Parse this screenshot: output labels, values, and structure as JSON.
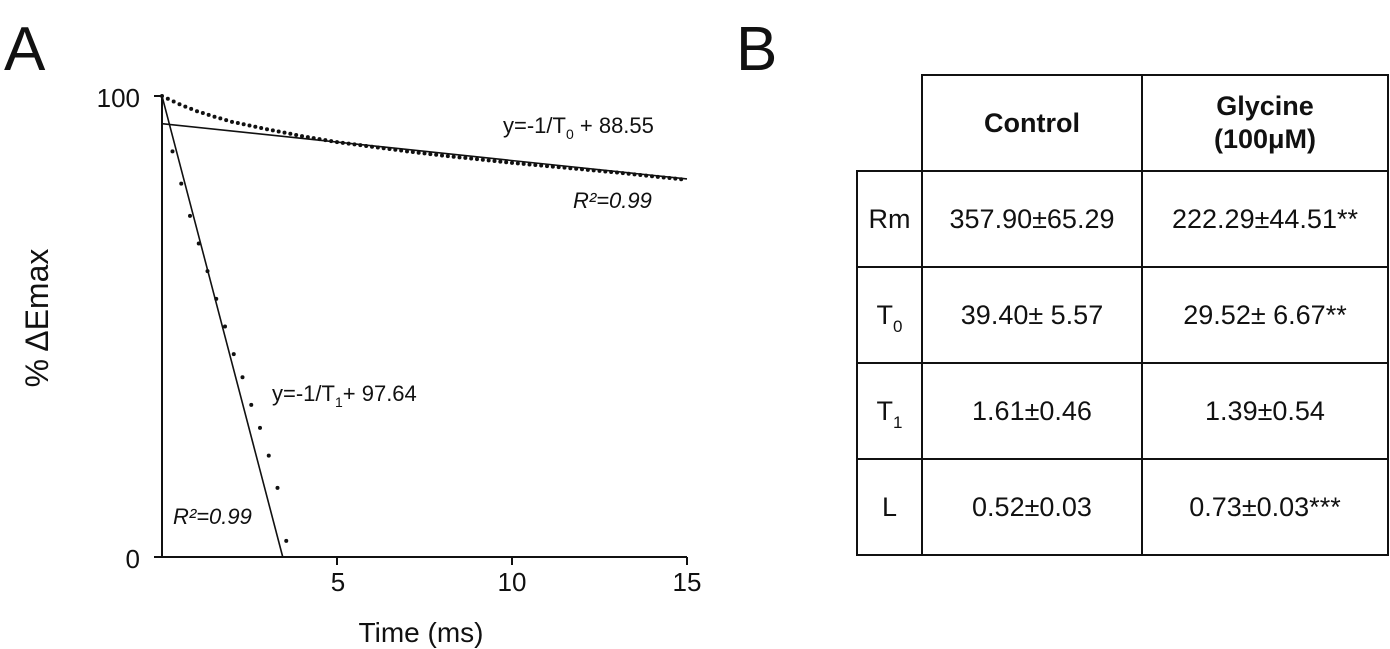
{
  "panels": {
    "a_label": "A",
    "b_label": "B"
  },
  "chart_data": {
    "type": "line",
    "xlabel": "Time (ms)",
    "ylabel": "% ΔEmax",
    "xlim": [
      0,
      15
    ],
    "ylim": [
      0,
      100
    ],
    "x_ticks": [
      "5",
      "10",
      "15"
    ],
    "y_ticks": [
      "0",
      "100"
    ],
    "grid": false,
    "legend": "none",
    "series": [
      {
        "style": "dotted",
        "x": [
          0,
          0.5,
          1,
          1.5,
          2,
          3,
          4,
          5,
          6,
          7,
          8,
          9,
          10,
          11,
          12,
          13,
          14,
          15
        ],
        "y": [
          100,
          98.2,
          96.7,
          95.5,
          94.4,
          92.8,
          91.3,
          90.0,
          89.0,
          88.0,
          87.1,
          86.3,
          85.5,
          84.8,
          84.1,
          83.4,
          82.6,
          81.8
        ]
      },
      {
        "style": "dotted",
        "x": [
          0.3,
          0.55,
          0.8,
          1.05,
          1.3,
          1.55,
          1.8,
          2.05,
          2.3,
          2.55,
          2.8,
          3.05,
          3.3,
          3.55
        ],
        "y": [
          88,
          81,
          74,
          68,
          62,
          56,
          50,
          44,
          39,
          33,
          28,
          22,
          15,
          3.5
        ]
      },
      {
        "style": "solid",
        "x": [
          0,
          15
        ],
        "y": [
          94,
          82
        ]
      },
      {
        "style": "solid",
        "x": [
          0,
          3.45
        ],
        "y": [
          100,
          0
        ]
      }
    ],
    "annotations": {
      "fit0_eq_prefix": "y=-1/T",
      "fit0_eq_sub": "0",
      "fit0_eq_suffix": " + 88.55",
      "fit0_r2": "R²=0.99",
      "fit1_eq_prefix": "y=-1/T",
      "fit1_eq_sub": "1",
      "fit1_eq_suffix": "+ 97.64",
      "fit1_r2": "R²=0.99"
    }
  },
  "table": {
    "headers": {
      "control": "Control",
      "glycine_line1": "Glycine",
      "glycine_line2": "(100μM)"
    },
    "rows": [
      {
        "label": "Rm",
        "label_sub": "",
        "control": "357.90±65.29",
        "glycine": "222.29±44.51**"
      },
      {
        "label": "T",
        "label_sub": "0",
        "control": "39.40± 5.57",
        "glycine": "29.52± 6.67**"
      },
      {
        "label": "T",
        "label_sub": "1",
        "control": "1.61±0.46",
        "glycine": "1.39±0.54"
      },
      {
        "label": "L",
        "label_sub": "",
        "control": "0.52±0.03",
        "glycine": "0.73±0.03***"
      }
    ]
  }
}
